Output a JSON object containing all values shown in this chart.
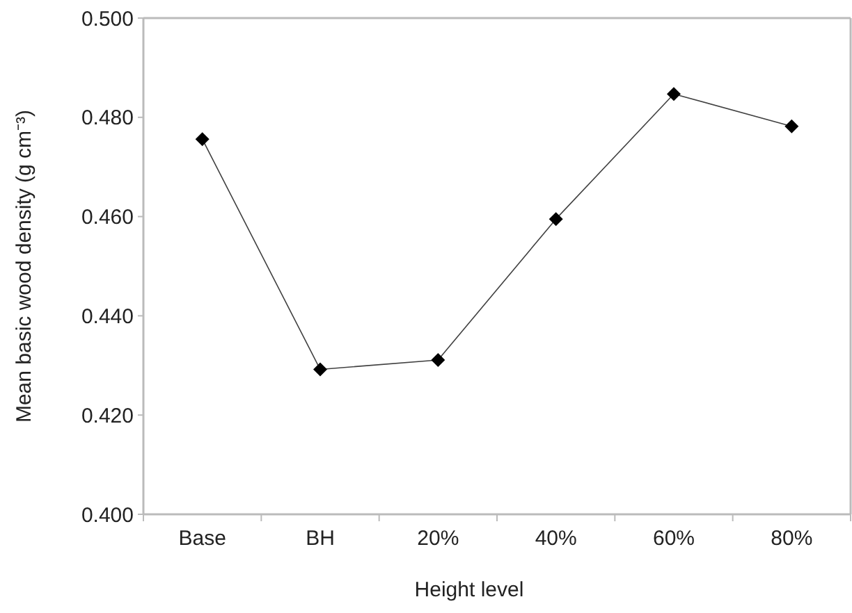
{
  "chart_data": {
    "type": "line",
    "xlabel": "Height level",
    "ylabel": "Mean basic wood density (g cm⁻³)",
    "categories": [
      "Base",
      "BH",
      "20%",
      "40%",
      "60%",
      "80%"
    ],
    "series": [
      {
        "color": "#000000",
        "values": [
          0.4756,
          0.4292,
          0.4311,
          0.4595,
          0.4847,
          0.4782
        ]
      }
    ],
    "ylim": [
      0.4,
      0.5
    ],
    "yticks": [
      {
        "value": 0.4,
        "label": "0.400"
      },
      {
        "value": 0.42,
        "label": "0.420"
      },
      {
        "value": 0.44,
        "label": "0.440"
      },
      {
        "value": 0.46,
        "label": "0.460"
      },
      {
        "value": 0.48,
        "label": "0.480"
      },
      {
        "value": 0.5,
        "label": "0.500"
      }
    ],
    "marker": "diamond",
    "line_style": "solid"
  }
}
